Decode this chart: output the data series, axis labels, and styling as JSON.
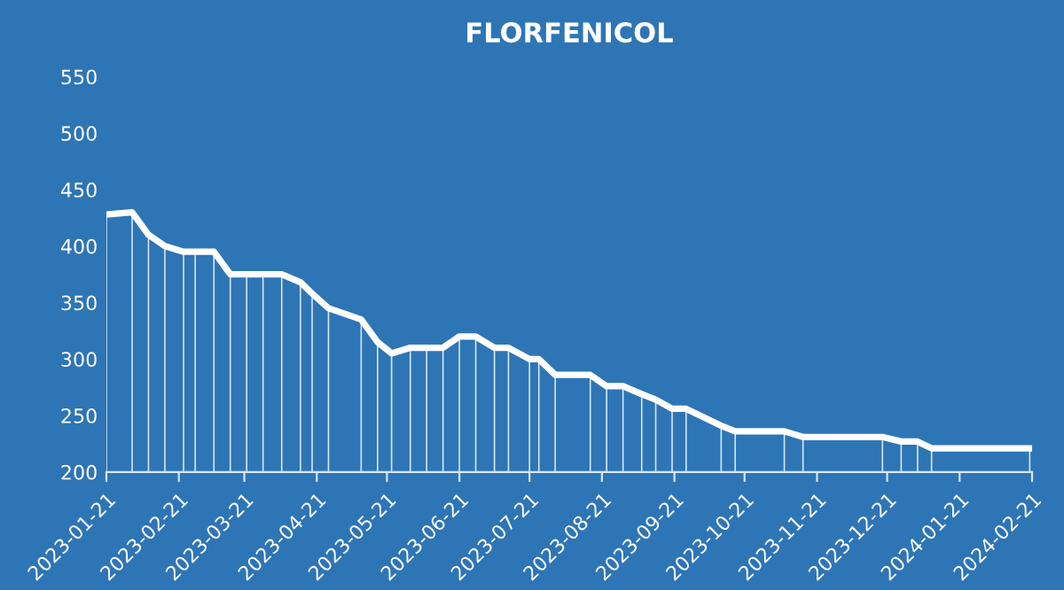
{
  "chart_data": {
    "type": "line",
    "title": "FLORFENICOL",
    "x": [
      "2023-01-21",
      "2023-02-01",
      "2023-02-08",
      "2023-02-15",
      "2023-02-23",
      "2023-02-28",
      "2023-03-08",
      "2023-03-15",
      "2023-03-22",
      "2023-03-29",
      "2023-04-06",
      "2023-04-14",
      "2023-04-19",
      "2023-04-26",
      "2023-05-10",
      "2023-05-17",
      "2023-05-23",
      "2023-05-31",
      "2023-06-07",
      "2023-06-14",
      "2023-06-21",
      "2023-06-28",
      "2023-07-06",
      "2023-07-12",
      "2023-07-21",
      "2023-07-25",
      "2023-08-01",
      "2023-08-16",
      "2023-08-23",
      "2023-08-30",
      "2023-09-07",
      "2023-09-13",
      "2023-09-20",
      "2023-09-26",
      "2023-10-11",
      "2023-10-17",
      "2023-11-07",
      "2023-11-15",
      "2023-12-19",
      "2023-12-27",
      "2024-01-03",
      "2024-01-09",
      "2024-02-20"
    ],
    "series": [
      {
        "type": "bar",
        "color": "#dce8f5",
        "values": [
          428,
          430,
          410,
          400,
          395,
          395,
          395,
          375,
          375,
          375,
          375,
          368,
          358,
          345,
          335,
          315,
          305,
          310,
          310,
          310,
          320,
          320,
          310,
          310,
          300,
          300,
          286,
          286,
          276,
          276,
          269,
          264,
          256,
          256,
          241,
          236,
          236,
          231,
          231,
          227,
          227,
          221,
          221
        ]
      },
      {
        "color": "#ffffff",
        "values": [
          428,
          430,
          410,
          400,
          395,
          395,
          395,
          375,
          375,
          375,
          375,
          368,
          358,
          345,
          335,
          315,
          305,
          310,
          310,
          310,
          320,
          320,
          310,
          310,
          300,
          300,
          286,
          286,
          276,
          276,
          269,
          264,
          256,
          256,
          241,
          236,
          236,
          231,
          231,
          227,
          227,
          221,
          221
        ]
      }
    ],
    "xlim": [
      "2023-01-21",
      "2024-02-21"
    ],
    "xticks": [
      "2023-01-21",
      "2023-02-21",
      "2023-03-21",
      "2023-04-21",
      "2023-05-21",
      "2023-06-21",
      "2023-07-21",
      "2023-08-21",
      "2023-09-21",
      "2023-10-21",
      "2023-11-21",
      "2023-12-21",
      "2024-01-21",
      "2024-02-21"
    ],
    "ylim": [
      200,
      550
    ],
    "yticks": [
      200,
      250,
      300,
      350,
      400,
      450,
      500,
      550
    ],
    "grid": false,
    "legend": false,
    "marker": "none",
    "line_style": "solid"
  }
}
